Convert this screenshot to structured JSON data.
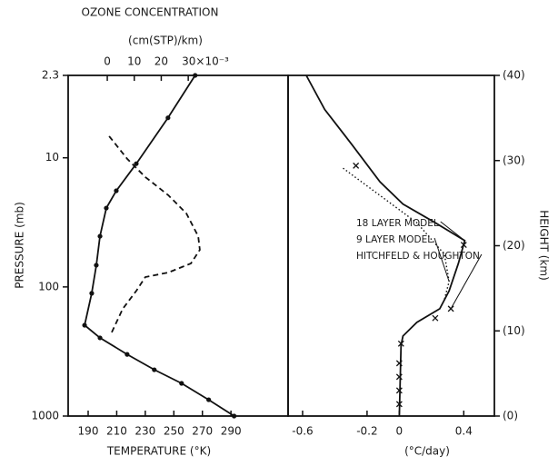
{
  "chart_data": [
    {
      "type": "line",
      "title": "OZONE CONCENTRATION",
      "x2label": "(cm(STP)/km)",
      "xlabel": "TEMPERATURE (°K)",
      "ylabel": "PRESSURE (mb)",
      "ylog": true,
      "ylim": [
        2.3,
        1000
      ],
      "yticks": [
        2.3,
        10,
        100,
        1000
      ],
      "xlim": [
        176,
        330
      ],
      "xticks": [
        190,
        210,
        230,
        250,
        270,
        290
      ],
      "x2lim": [
        -14.5,
        67
      ],
      "x2ticks": [
        0,
        10,
        20,
        {
          "value": 30,
          "label": "30×10⁻³"
        }
      ],
      "series": [
        {
          "color": "#111111",
          "style": "solid",
          "marker": "dot",
          "x": [
            264.9,
            245.9,
            223.7,
            209.7,
            202.7,
            198.3,
            195.7,
            192.5,
            187.5,
            198.3,
            217.3,
            236.3,
            255.4,
            274.4,
            292.2
          ],
          "y": [
            2.3,
            4.9,
            11.1,
            18,
            24.5,
            40.5,
            67.9,
            112,
            198,
            248,
            333,
            438,
            558,
            748,
            1000
          ]
        },
        {
          "axis": "x2",
          "color": "#111111",
          "style": "dashed",
          "x": [
            0.7,
            7.4,
            14.1,
            22.6,
            29.3,
            33.7,
            34.3,
            31.0,
            22.6,
            14.1,
            10.8,
            5.7,
            1.3
          ],
          "y": [
            6.8,
            10.2,
            14.1,
            19.5,
            27,
            40.5,
            51.6,
            65.8,
            77.4,
            83.9,
            107,
            148,
            233
          ]
        }
      ]
    },
    {
      "type": "line",
      "xlabel": "(°C/day)",
      "ylabel": "HEIGHT (km)",
      "ylim": [
        0,
        40
      ],
      "yticks": [
        {
          "value": 0,
          "label": "(0)"
        },
        {
          "value": 10,
          "label": "(10)"
        },
        {
          "value": 20,
          "label": "(20)"
        },
        {
          "value": 30,
          "label": "(30)"
        },
        {
          "value": 40,
          "label": "(40)"
        }
      ],
      "xlim": [
        -0.69,
        0.59
      ],
      "xticks": [
        -0.6,
        -0.2,
        0,
        0.4
      ],
      "series": [
        {
          "name": "18 LAYER MODEL",
          "color": "#111111",
          "style": "solid",
          "x": [
            -0.577,
            -0.463,
            -0.291,
            -0.12,
            0.023,
            0.223,
            0.406,
            0.366,
            0.309,
            0.251,
            0.109,
            0.023,
            0.011,
            0
          ],
          "y": [
            40,
            36,
            31.8,
            27.5,
            24.9,
            22.7,
            20.6,
            17.9,
            14.7,
            12.6,
            11,
            9.4,
            8.3,
            0
          ]
        },
        {
          "name": "9 LAYER MODEL",
          "color": "#111111",
          "style": "dotted",
          "x": [
            -0.349,
            -0.12,
            0.109,
            0.28,
            0.309,
            0.28
          ],
          "y": [
            29.1,
            25.9,
            22.7,
            19,
            15.8,
            13.7
          ]
        },
        {
          "name": "HITCHFELD & HOUGHTON",
          "color": "#111111",
          "style": "none",
          "marker": "x",
          "x": [
            -0.269,
            0.4,
            0.32,
            0.223,
            0.011,
            0,
            0,
            0,
            0
          ],
          "y": [
            29.4,
            20.1,
            12.6,
            11.5,
            8.5,
            6.2,
            4.6,
            3,
            1.4
          ]
        }
      ]
    }
  ]
}
